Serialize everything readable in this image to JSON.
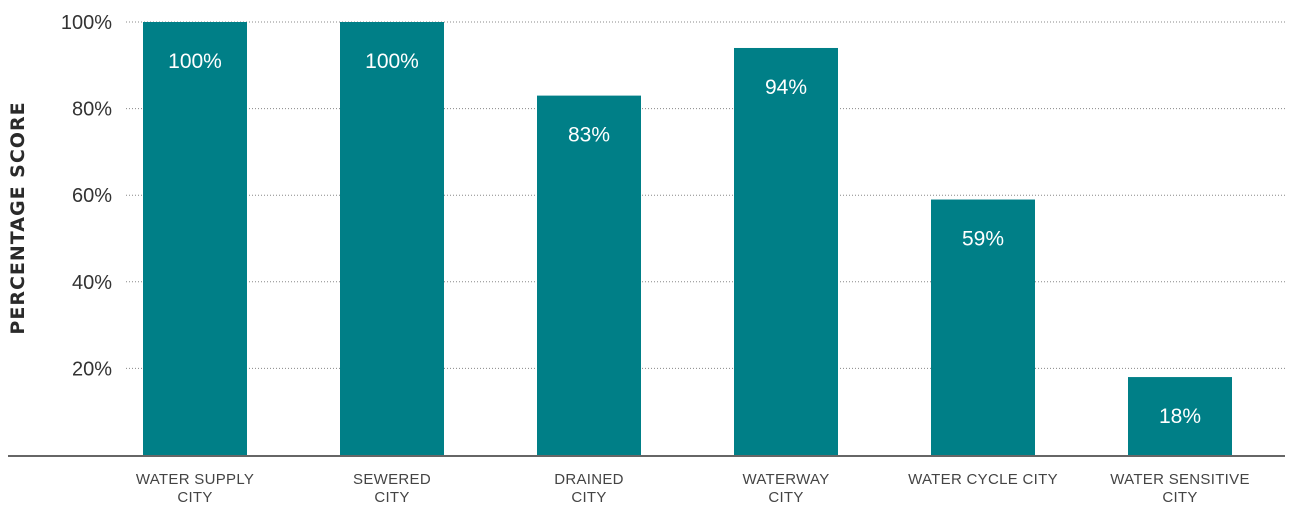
{
  "chart_data": {
    "type": "bar",
    "title": "",
    "xlabel": "",
    "ylabel": "PERCENTAGE  SCORE",
    "categories": [
      [
        "WATER SUPPLY",
        "CITY"
      ],
      [
        "SEWERED",
        "CITY"
      ],
      [
        "DRAINED",
        "CITY"
      ],
      [
        "WATERWAY",
        "CITY"
      ],
      [
        "WATER CYCLE CITY"
      ],
      [
        "WATER SENSITIVE",
        "CITY"
      ]
    ],
    "values": [
      100,
      100,
      83,
      94,
      59,
      18
    ],
    "data_labels": [
      "100%",
      "100%",
      "83%",
      "94%",
      "59%",
      "18%"
    ],
    "yticks": [
      20,
      40,
      60,
      80,
      100
    ],
    "ytick_labels": [
      "20%",
      "40%",
      "60%",
      "80%",
      "100%"
    ],
    "ylim": [
      0,
      100
    ],
    "grid": "horizontal dotted",
    "legend": "none",
    "bar_color": "#007f87"
  }
}
